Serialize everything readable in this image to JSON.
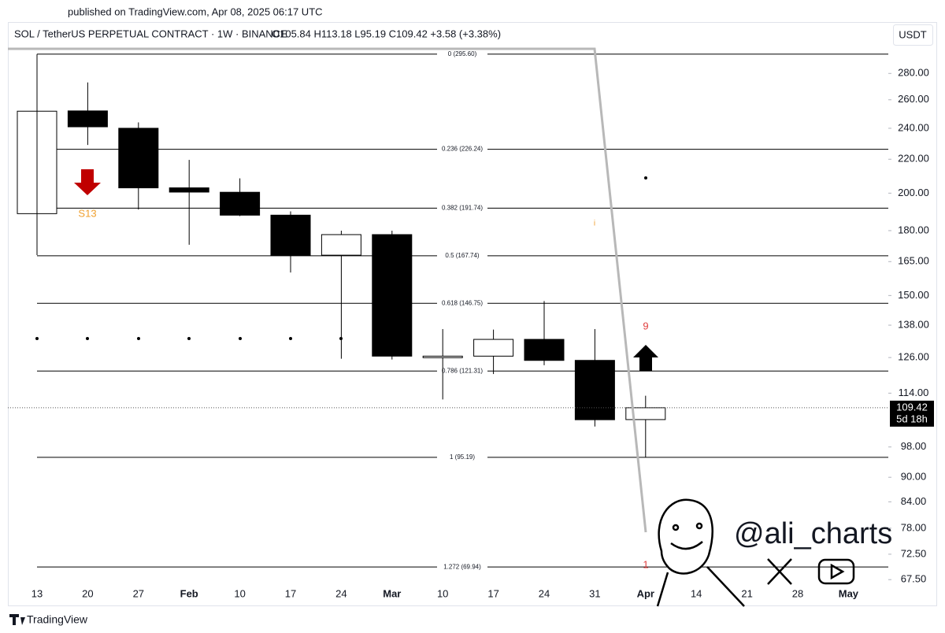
{
  "chart_data": {
    "type": "candlestick",
    "published": "published on TradingView.com, Apr 08, 2025 06:17 UTC",
    "title": "SOL / TetherUS PERPETUAL CONTRACT · 1W · BINANCE",
    "subtitle": "O105.84 H113.18 L95.19 C109.42 +3.58 (+3.38%)",
    "currency": "USDT",
    "brand": "TradingView",
    "watermark": "@ali_charts",
    "countdown": "5d 18h",
    "categories": [
      "13",
      "20",
      "27",
      "Feb",
      "10",
      "17",
      "24",
      "Mar",
      "10",
      "17",
      "24",
      "31",
      "Apr",
      "14",
      "21",
      "28",
      "May"
    ],
    "open": [
      188.8,
      252,
      240,
      203,
      200.5,
      188,
      168,
      178,
      126.3,
      126.5,
      132.6,
      125,
      105.84,
      null,
      null,
      null,
      null
    ],
    "high": [
      295.6,
      273,
      244,
      219.6,
      208.5,
      190,
      180,
      180,
      136.5,
      136.3,
      147.7,
      136.5,
      113.18,
      null,
      null,
      null,
      null
    ],
    "low": [
      188,
      229,
      191,
      173,
      187.5,
      160,
      125.6,
      125.3,
      112,
      120.3,
      123.3,
      103.8,
      95.19,
      null,
      null,
      null,
      null
    ],
    "close": [
      251.8,
      241,
      203,
      200.6,
      188,
      168,
      178,
      126.5,
      126.5,
      132.6,
      125,
      105.8,
      109.42,
      null,
      null,
      null,
      null
    ],
    "up_color": "#ffffff",
    "down_color": "#000000",
    "log_scale": true,
    "ylim": [
      66.2,
      323.5
    ],
    "yticks": [
      {
        "value": 280,
        "label": "280.00"
      },
      {
        "value": 260,
        "label": "260.00"
      },
      {
        "value": 240,
        "label": "240.00"
      },
      {
        "value": 220,
        "label": "220.00"
      },
      {
        "value": 200,
        "label": "200.00"
      },
      {
        "value": 180,
        "label": "180.00"
      },
      {
        "value": 165,
        "label": "165.00"
      },
      {
        "value": 150,
        "label": "150.00"
      },
      {
        "value": 138,
        "label": "138.00"
      },
      {
        "value": 126,
        "label": "126.00"
      },
      {
        "value": 114,
        "label": "114.00"
      },
      {
        "value": 98,
        "label": "98.00"
      },
      {
        "value": 90,
        "label": "90.00"
      },
      {
        "value": 84,
        "label": "84.00"
      },
      {
        "value": 78,
        "label": "78.00"
      },
      {
        "value": 72.5,
        "label": "72.50"
      },
      {
        "value": 67.5,
        "label": "67.50"
      }
    ],
    "fib_levels": [
      {
        "value": 295.6,
        "label": "0 (295.60)"
      },
      {
        "value": 226.24,
        "label": "0.236 (226.24)"
      },
      {
        "value": 191.74,
        "label": "0.382 (191.74)"
      },
      {
        "value": 167.74,
        "label": "0.5 (167.74)"
      },
      {
        "value": 146.75,
        "label": "0.618 (146.75)"
      },
      {
        "value": 121.31,
        "label": "0.786 (121.31)"
      },
      {
        "value": 95.19,
        "label": "1 (95.19)"
      },
      {
        "value": 69.94,
        "label": "1.272 (69.94)"
      }
    ],
    "annotations": {
      "sell_setup": "S13",
      "count_nine": "9",
      "count_one": "1",
      "info": "i"
    }
  }
}
